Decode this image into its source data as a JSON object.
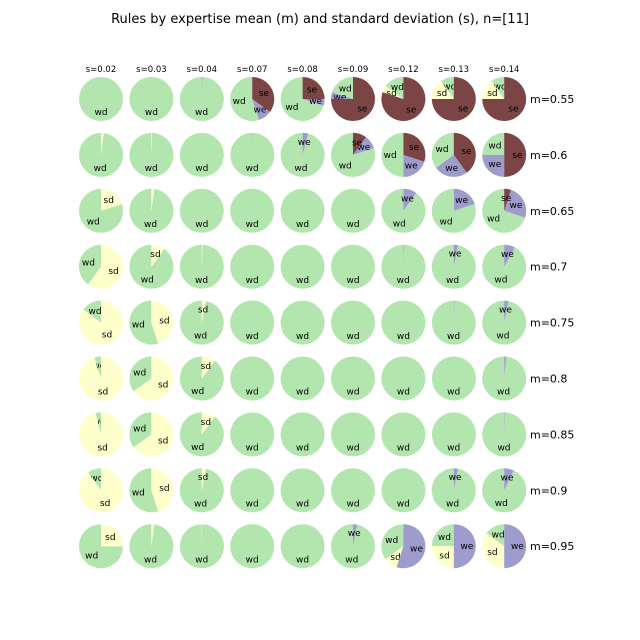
{
  "chart_data": {
    "type": "pie",
    "title": "Rules by expertise mean (m) and standard deviation (s), n=[11]",
    "columns": [
      "s=0.02",
      "s=0.03",
      "s=0.04",
      "s=0.07",
      "s=0.08",
      "s=0.09",
      "s=0.12",
      "s=0.13",
      "s=0.14"
    ],
    "rows": [
      "m=0.55",
      "m=0.6",
      "m=0.65",
      "m=0.7",
      "m=0.75",
      "m=0.8",
      "m=0.85",
      "m=0.9",
      "m=0.95"
    ],
    "categories": [
      "wd",
      "sd",
      "we",
      "se"
    ],
    "colors": {
      "wd": "#b3e5ae",
      "sd": "#ffffcc",
      "we": "#9d9ccc",
      "se": "#7b4545"
    },
    "series": [
      [
        {
          "wd": 1,
          "sd": 0,
          "we": 0,
          "se": 0
        },
        {
          "wd": 1,
          "sd": 0,
          "we": 0,
          "se": 0
        },
        {
          "wd": 0.995,
          "sd": 0,
          "we": 0.005,
          "se": 0
        },
        {
          "wd": 0.55,
          "sd": 0,
          "we": 0.1,
          "se": 0.35
        },
        {
          "wd": 0.7,
          "sd": 0,
          "we": 0.05,
          "se": 0.25
        },
        {
          "wd": 0.2,
          "sd": 0,
          "we": 0.05,
          "se": 0.75
        },
        {
          "wd": 0.15,
          "sd": 0.05,
          "we": 0,
          "se": 0.8
        },
        {
          "wd": 0.1,
          "sd": 0.15,
          "we": 0,
          "se": 0.75
        },
        {
          "wd": 0.1,
          "sd": 0.15,
          "we": 0,
          "se": 0.75
        }
      ],
      [
        {
          "wd": 0.98,
          "sd": 0.02,
          "we": 0,
          "se": 0
        },
        {
          "wd": 0.995,
          "sd": 0.005,
          "we": 0,
          "se": 0
        },
        {
          "wd": 1,
          "sd": 0,
          "we": 0,
          "se": 0
        },
        {
          "wd": 0.998,
          "sd": 0,
          "we": 0.002,
          "se": 0
        },
        {
          "wd": 0.96,
          "sd": 0,
          "we": 0.04,
          "se": 0
        },
        {
          "wd": 0.8,
          "sd": 0,
          "we": 0.1,
          "se": 0.1
        },
        {
          "wd": 0.5,
          "sd": 0,
          "we": 0.2,
          "se": 0.3
        },
        {
          "wd": 0.35,
          "sd": 0,
          "we": 0.25,
          "se": 0.4
        },
        {
          "wd": 0.25,
          "sd": 0,
          "we": 0.25,
          "se": 0.5
        }
      ],
      [
        {
          "wd": 0.8,
          "sd": 0.2,
          "we": 0,
          "se": 0
        },
        {
          "wd": 0.98,
          "sd": 0.02,
          "we": 0,
          "se": 0
        },
        {
          "wd": 1,
          "sd": 0,
          "we": 0,
          "se": 0
        },
        {
          "wd": 1,
          "sd": 0,
          "we": 0,
          "se": 0
        },
        {
          "wd": 1,
          "sd": 0,
          "we": 0,
          "se": 0
        },
        {
          "wd": 1,
          "sd": 0,
          "we": 0,
          "se": 0
        },
        {
          "wd": 0.9,
          "sd": 0,
          "we": 0.1,
          "se": 0
        },
        {
          "wd": 0.8,
          "sd": 0,
          "we": 0.2,
          "se": 0
        },
        {
          "wd": 0.7,
          "sd": 0,
          "we": 0.25,
          "se": 0.05
        }
      ],
      [
        {
          "wd": 0.4,
          "sd": 0.6,
          "we": 0,
          "se": 0
        },
        {
          "wd": 0.9,
          "sd": 0.1,
          "we": 0,
          "se": 0
        },
        {
          "wd": 0.995,
          "sd": 0.005,
          "we": 0,
          "se": 0
        },
        {
          "wd": 1,
          "sd": 0,
          "we": 0,
          "se": 0
        },
        {
          "wd": 1,
          "sd": 0,
          "we": 0,
          "se": 0
        },
        {
          "wd": 1,
          "sd": 0,
          "we": 0,
          "se": 0
        },
        {
          "wd": 0.995,
          "sd": 0,
          "we": 0.005,
          "se": 0
        },
        {
          "wd": 0.97,
          "sd": 0,
          "we": 0.03,
          "se": 0
        },
        {
          "wd": 0.92,
          "sd": 0,
          "we": 0.08,
          "se": 0
        }
      ],
      [
        {
          "wd": 0.15,
          "sd": 0.85,
          "we": 0,
          "se": 0
        },
        {
          "wd": 0.55,
          "sd": 0.45,
          "we": 0,
          "se": 0
        },
        {
          "wd": 0.97,
          "sd": 0.03,
          "we": 0,
          "se": 0
        },
        {
          "wd": 1,
          "sd": 0,
          "we": 0,
          "se": 0
        },
        {
          "wd": 1,
          "sd": 0,
          "we": 0,
          "se": 0
        },
        {
          "wd": 1,
          "sd": 0,
          "we": 0,
          "se": 0
        },
        {
          "wd": 1,
          "sd": 0,
          "we": 0,
          "se": 0
        },
        {
          "wd": 0.995,
          "sd": 0,
          "we": 0.005,
          "se": 0
        },
        {
          "wd": 0.97,
          "sd": 0,
          "we": 0.03,
          "se": 0
        }
      ],
      [
        {
          "wd": 0.05,
          "sd": 0.95,
          "we": 0,
          "se": 0
        },
        {
          "wd": 0.35,
          "sd": 0.65,
          "we": 0,
          "se": 0
        },
        {
          "wd": 0.9,
          "sd": 0.1,
          "we": 0,
          "se": 0
        },
        {
          "wd": 1,
          "sd": 0,
          "we": 0,
          "se": 0
        },
        {
          "wd": 1,
          "sd": 0,
          "we": 0,
          "se": 0
        },
        {
          "wd": 1,
          "sd": 0,
          "we": 0,
          "se": 0
        },
        {
          "wd": 1,
          "sd": 0,
          "we": 0,
          "se": 0
        },
        {
          "wd": 0.998,
          "sd": 0,
          "we": 0.002,
          "se": 0
        },
        {
          "wd": 0.985,
          "sd": 0,
          "we": 0.015,
          "se": 0
        }
      ],
      [
        {
          "wd": 0.04,
          "sd": 0.96,
          "we": 0,
          "se": 0
        },
        {
          "wd": 0.35,
          "sd": 0.65,
          "we": 0,
          "se": 0
        },
        {
          "wd": 0.9,
          "sd": 0.1,
          "we": 0,
          "se": 0
        },
        {
          "wd": 1,
          "sd": 0,
          "we": 0,
          "se": 0
        },
        {
          "wd": 1,
          "sd": 0,
          "we": 0,
          "se": 0
        },
        {
          "wd": 1,
          "sd": 0,
          "we": 0,
          "se": 0
        },
        {
          "wd": 1,
          "sd": 0,
          "we": 0,
          "se": 0
        },
        {
          "wd": 0.998,
          "sd": 0,
          "we": 0.002,
          "se": 0
        },
        {
          "wd": 0.995,
          "sd": 0,
          "we": 0.005,
          "se": 0
        }
      ],
      [
        {
          "wd": 0.1,
          "sd": 0.9,
          "we": 0,
          "se": 0
        },
        {
          "wd": 0.55,
          "sd": 0.45,
          "we": 0,
          "se": 0
        },
        {
          "wd": 0.97,
          "sd": 0.03,
          "we": 0,
          "se": 0
        },
        {
          "wd": 1,
          "sd": 0,
          "we": 0,
          "se": 0
        },
        {
          "wd": 1,
          "sd": 0,
          "we": 0,
          "se": 0
        },
        {
          "wd": 1,
          "sd": 0,
          "we": 0,
          "se": 0
        },
        {
          "wd": 0.998,
          "sd": 0,
          "we": 0.002,
          "se": 0
        },
        {
          "wd": 0.97,
          "sd": 0,
          "we": 0.03,
          "se": 0
        },
        {
          "wd": 0.93,
          "sd": 0,
          "we": 0.07,
          "se": 0
        }
      ],
      [
        {
          "wd": 0.75,
          "sd": 0.25,
          "we": 0,
          "se": 0
        },
        {
          "wd": 0.98,
          "sd": 0.02,
          "we": 0,
          "se": 0
        },
        {
          "wd": 0.998,
          "sd": 0.002,
          "we": 0,
          "se": 0
        },
        {
          "wd": 1,
          "sd": 0,
          "we": 0,
          "se": 0
        },
        {
          "wd": 1,
          "sd": 0,
          "we": 0,
          "se": 0
        },
        {
          "wd": 0.97,
          "sd": 0,
          "we": 0.03,
          "se": 0
        },
        {
          "wd": 0.35,
          "sd": 0.1,
          "we": 0.55,
          "se": 0
        },
        {
          "wd": 0.25,
          "sd": 0.25,
          "we": 0.5,
          "se": 0
        },
        {
          "wd": 0.15,
          "sd": 0.35,
          "we": 0.5,
          "se": 0
        }
      ]
    ]
  }
}
